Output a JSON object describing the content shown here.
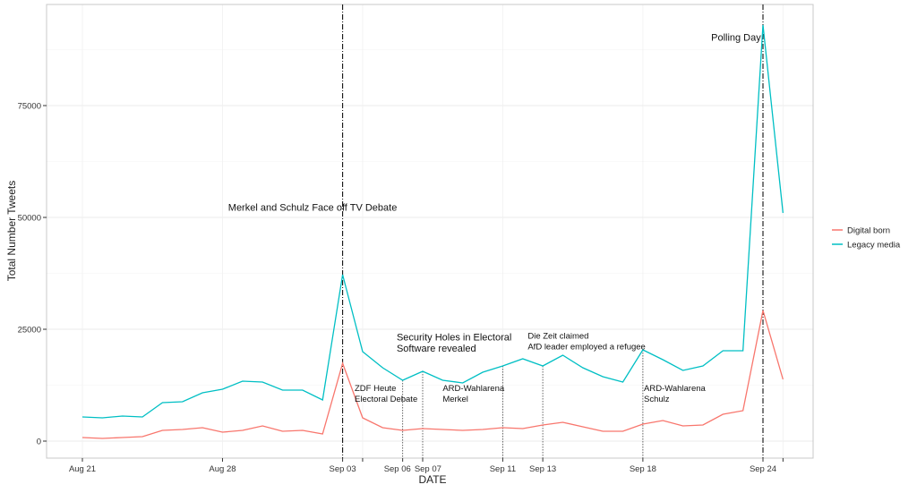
{
  "chart_data": {
    "type": "line",
    "title": "",
    "xlabel": "DATE",
    "ylabel": "Total Number Tweets",
    "x_ticks": [
      {
        "date": "2017-08-21",
        "label": "Aug 21"
      },
      {
        "date": "2017-08-28",
        "label": "Aug 28"
      },
      {
        "date": "2017-09-03",
        "label": "Sep 03"
      },
      {
        "date": "2017-09-04",
        "label": ""
      },
      {
        "date": "2017-09-06",
        "label": "Sep 06"
      },
      {
        "date": "2017-09-07",
        "label": "Sep 07"
      },
      {
        "date": "2017-09-11",
        "label": "Sep 11"
      },
      {
        "date": "2017-09-13",
        "label": "Sep 13"
      },
      {
        "date": "2017-09-18",
        "label": "Sep 18"
      },
      {
        "date": "2017-09-24",
        "label": "Sep 24"
      },
      {
        "date": "2017-09-25",
        "label": ""
      }
    ],
    "y_ticks": [
      0,
      25000,
      50000,
      75000
    ],
    "y_tick_labels": [
      "0",
      "25000",
      "50000",
      "75000"
    ],
    "ylim": [
      -3800,
      97600
    ],
    "xlim": [
      "2017-08-19",
      "2017-09-27"
    ],
    "grid": true,
    "legend": "right",
    "x": [
      "2017-08-21",
      "2017-08-22",
      "2017-08-23",
      "2017-08-24",
      "2017-08-25",
      "2017-08-26",
      "2017-08-27",
      "2017-08-28",
      "2017-08-29",
      "2017-08-30",
      "2017-08-31",
      "2017-09-01",
      "2017-09-02",
      "2017-09-03",
      "2017-09-04",
      "2017-09-05",
      "2017-09-06",
      "2017-09-07",
      "2017-09-08",
      "2017-09-09",
      "2017-09-10",
      "2017-09-11",
      "2017-09-12",
      "2017-09-13",
      "2017-09-14",
      "2017-09-15",
      "2017-09-16",
      "2017-09-17",
      "2017-09-18",
      "2017-09-19",
      "2017-09-20",
      "2017-09-21",
      "2017-09-22",
      "2017-09-23",
      "2017-09-24",
      "2017-09-25"
    ],
    "series": [
      {
        "name": "Digital born",
        "color": "#F8766D",
        "values": [
          800,
          600,
          800,
          1000,
          2400,
          2600,
          3000,
          2000,
          2400,
          3400,
          2200,
          2400,
          1600,
          17400,
          5200,
          3000,
          2400,
          2800,
          2600,
          2400,
          2600,
          3000,
          2800,
          3600,
          4200,
          3200,
          2200,
          2200,
          3800,
          4600,
          3400,
          3600,
          6000,
          6800,
          29200,
          13800
        ]
      },
      {
        "name": "Legacy media",
        "color": "#00BFC4",
        "values": [
          5400,
          5200,
          5600,
          5400,
          8600,
          8800,
          10800,
          11600,
          13400,
          13200,
          11400,
          11400,
          9200,
          37200,
          20000,
          16400,
          13600,
          15600,
          13600,
          13000,
          15400,
          16800,
          18400,
          16800,
          19200,
          16400,
          14400,
          13200,
          20400,
          18200,
          15800,
          16800,
          20200,
          20200,
          93000,
          51000
        ]
      }
    ],
    "annotations": [
      {
        "date": "2017-09-03",
        "line": "dashdot",
        "text": [
          "Merkel and Schulz Face off TV Debate"
        ],
        "text_value": 51500,
        "anchor": "middle",
        "dx_days": -1.5,
        "size": "large"
      },
      {
        "date": "2017-09-24",
        "line": "dashdot",
        "text": [
          "Polling Day"
        ],
        "text_value": 89500,
        "anchor": "end",
        "dx_days": -0.1,
        "size": "large"
      },
      {
        "date": "2017-09-06",
        "line": "dotted",
        "from_value": 13600,
        "text": [
          "Security Holes in Electoral",
          "Software revealed"
        ],
        "text_value": 22500,
        "anchor": "start",
        "dx_days": -0.3,
        "size": "large"
      },
      {
        "date": "2017-09-13",
        "line": "dotted",
        "from_value": 16800,
        "text": [
          "Die Zeit claimed",
          "AfD leader employed a refugee"
        ],
        "text_value": 22900,
        "anchor": "start",
        "dx_days": -0.75,
        "size": "small"
      },
      {
        "date": "2017-09-04",
        "line": "none",
        "text": [
          "ZDF Heute",
          "Electoral Debate"
        ],
        "text_value": 11200,
        "anchor": "start",
        "dx_days": -0.4,
        "size": "small"
      },
      {
        "date": "2017-09-07",
        "line": "dotted",
        "from_value": 15600,
        "text": [],
        "size": "small"
      },
      {
        "date": "2017-09-11",
        "line": "dotted",
        "from_value": 16800,
        "text": [
          "ARD-Wahlarena",
          "Merkel"
        ],
        "text_value": 11200,
        "anchor": "start",
        "dx_days": -3,
        "size": "small"
      },
      {
        "date": "2017-09-18",
        "line": "dotted",
        "from_value": 20400,
        "text": [
          "ARD-Wahlarena",
          "Schulz"
        ],
        "text_value": 11200,
        "anchor": "start",
        "dx_days": 0.05,
        "size": "small"
      }
    ]
  }
}
